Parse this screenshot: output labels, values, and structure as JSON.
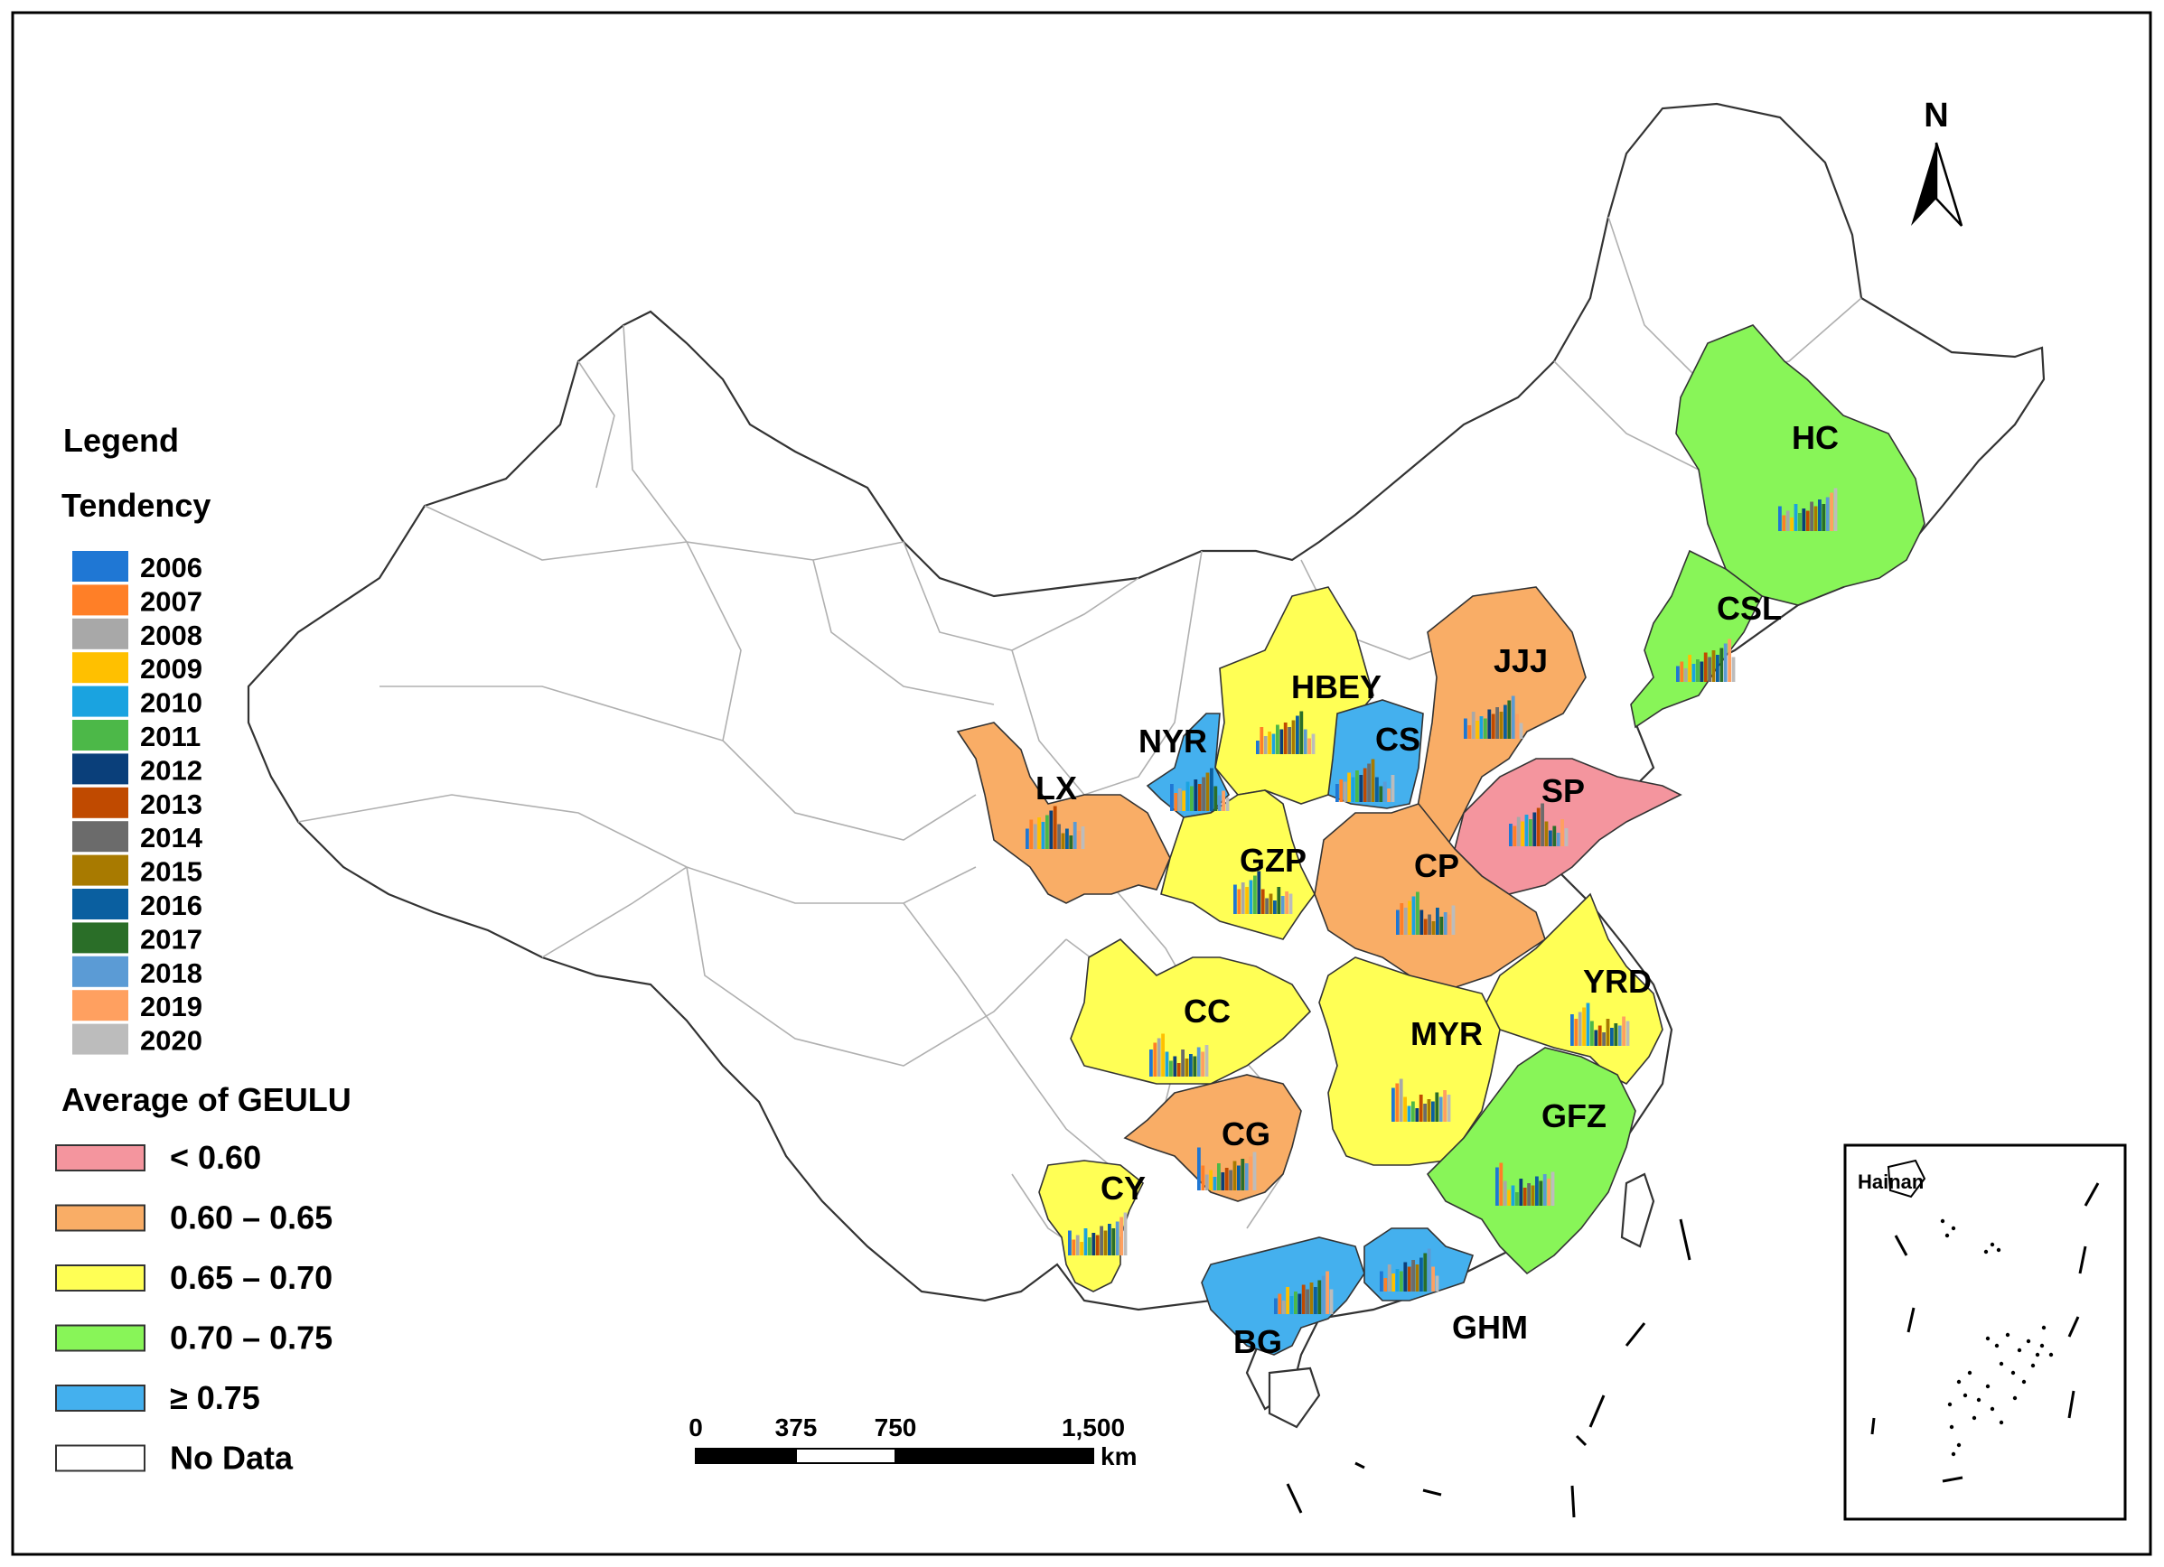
{
  "legend": {
    "title": "Legend",
    "tendency_title": "Tendency",
    "years": [
      {
        "year": "2006",
        "color": "#1f77d4"
      },
      {
        "year": "2007",
        "color": "#ff7f27"
      },
      {
        "year": "2008",
        "color": "#a8a8a8"
      },
      {
        "year": "2009",
        "color": "#ffc000"
      },
      {
        "year": "2010",
        "color": "#1aa3e0"
      },
      {
        "year": "2011",
        "color": "#4cb848"
      },
      {
        "year": "2012",
        "color": "#0a3f7a"
      },
      {
        "year": "2013",
        "color": "#c04a00"
      },
      {
        "year": "2014",
        "color": "#6b6b6b"
      },
      {
        "year": "2015",
        "color": "#a87a00"
      },
      {
        "year": "2016",
        "color": "#0a5fa0"
      },
      {
        "year": "2017",
        "color": "#2a6e28"
      },
      {
        "year": "2018",
        "color": "#5b9bd5"
      },
      {
        "year": "2019",
        "color": "#ffa060"
      },
      {
        "year": "2020",
        "color": "#bcbcbc"
      }
    ],
    "average_title": "Average of GEULU",
    "classes": [
      {
        "label": "< 0.60",
        "color": "#f4959e"
      },
      {
        "label": "0.60 – 0.65",
        "color": "#f9ad66"
      },
      {
        "label": "0.65 – 0.70",
        "color": "#ffff55"
      },
      {
        "label": "0.70 – 0.75",
        "color": "#88f558"
      },
      {
        "label": "≥ 0.75",
        "color": "#44b0ee"
      },
      {
        "label": "No Data",
        "color": "#ffffff"
      }
    ]
  },
  "regions": [
    {
      "code": "HC",
      "class": "0.70 – 0.75"
    },
    {
      "code": "CSL",
      "class": "0.70 – 0.75"
    },
    {
      "code": "JJJ",
      "class": "0.60 – 0.65"
    },
    {
      "code": "HBEY",
      "class": "0.65 – 0.70"
    },
    {
      "code": "NYR",
      "class": "≥ 0.75"
    },
    {
      "code": "CS",
      "class": "≥ 0.75"
    },
    {
      "code": "SP",
      "class": "< 0.60"
    },
    {
      "code": "LX",
      "class": "0.60 – 0.65"
    },
    {
      "code": "GZP",
      "class": "0.65 – 0.70"
    },
    {
      "code": "CP",
      "class": "0.60 – 0.65"
    },
    {
      "code": "YRD",
      "class": "0.65 – 0.70"
    },
    {
      "code": "CC",
      "class": "0.65 – 0.70"
    },
    {
      "code": "MYR",
      "class": "0.65 – 0.70"
    },
    {
      "code": "GFZ",
      "class": "0.70 – 0.75"
    },
    {
      "code": "CG",
      "class": "0.60 – 0.65"
    },
    {
      "code": "CY",
      "class": "0.65 – 0.70"
    },
    {
      "code": "BG",
      "class": "≥ 0.75"
    },
    {
      "code": "GHM",
      "class": "≥ 0.75"
    }
  ],
  "north_arrow": "N",
  "scale_bar": {
    "ticks": [
      "0",
      "375",
      "750",
      "1,500"
    ],
    "unit": "km"
  },
  "inset": {
    "label": "Hainan"
  }
}
